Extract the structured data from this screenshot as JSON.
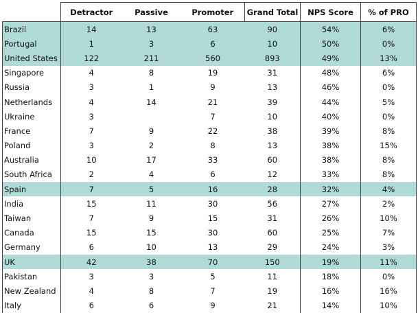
{
  "headers": [
    "Detractor",
    "Passive",
    "Promoter",
    "Grand Total",
    "NPS Score",
    "% of PRO"
  ],
  "colors": {
    "highlight": "#b0dad6"
  },
  "rows": [
    {
      "country": "Brazil",
      "detractor": "14",
      "passive": "13",
      "promoter": "63",
      "total": "90",
      "nps": "54%",
      "pro": "6%",
      "highlight": true
    },
    {
      "country": "Portugal",
      "detractor": "1",
      "passive": "3",
      "promoter": "6",
      "total": "10",
      "nps": "50%",
      "pro": "0%",
      "highlight": true
    },
    {
      "country": "United States",
      "detractor": "122",
      "passive": "211",
      "promoter": "560",
      "total": "893",
      "nps": "49%",
      "pro": "13%",
      "highlight": true
    },
    {
      "country": "Singapore",
      "detractor": "4",
      "passive": "8",
      "promoter": "19",
      "total": "31",
      "nps": "48%",
      "pro": "6%",
      "highlight": false
    },
    {
      "country": "Russia",
      "detractor": "3",
      "passive": "1",
      "promoter": "9",
      "total": "13",
      "nps": "46%",
      "pro": "0%",
      "highlight": false
    },
    {
      "country": "Netherlands",
      "detractor": "4",
      "passive": "14",
      "promoter": "21",
      "total": "39",
      "nps": "44%",
      "pro": "5%",
      "highlight": false
    },
    {
      "country": "Ukraine",
      "detractor": "3",
      "passive": "",
      "promoter": "7",
      "total": "10",
      "nps": "40%",
      "pro": "0%",
      "highlight": false
    },
    {
      "country": "France",
      "detractor": "7",
      "passive": "9",
      "promoter": "22",
      "total": "38",
      "nps": "39%",
      "pro": "8%",
      "highlight": false
    },
    {
      "country": "Poland",
      "detractor": "3",
      "passive": "2",
      "promoter": "8",
      "total": "13",
      "nps": "38%",
      "pro": "15%",
      "highlight": false
    },
    {
      "country": "Australia",
      "detractor": "10",
      "passive": "17",
      "promoter": "33",
      "total": "60",
      "nps": "38%",
      "pro": "8%",
      "highlight": false
    },
    {
      "country": "South Africa",
      "detractor": "2",
      "passive": "4",
      "promoter": "6",
      "total": "12",
      "nps": "33%",
      "pro": "8%",
      "highlight": false
    },
    {
      "country": "Spain",
      "detractor": "7",
      "passive": "5",
      "promoter": "16",
      "total": "28",
      "nps": "32%",
      "pro": "4%",
      "highlight": true
    },
    {
      "country": "India",
      "detractor": "15",
      "passive": "11",
      "promoter": "30",
      "total": "56",
      "nps": "27%",
      "pro": "2%",
      "highlight": false
    },
    {
      "country": "Taiwan",
      "detractor": "7",
      "passive": "9",
      "promoter": "15",
      "total": "31",
      "nps": "26%",
      "pro": "10%",
      "highlight": false
    },
    {
      "country": "Canada",
      "detractor": "15",
      "passive": "15",
      "promoter": "30",
      "total": "60",
      "nps": "25%",
      "pro": "7%",
      "highlight": false
    },
    {
      "country": "Germany",
      "detractor": "6",
      "passive": "10",
      "promoter": "13",
      "total": "29",
      "nps": "24%",
      "pro": "3%",
      "highlight": false
    },
    {
      "country": "UK",
      "detractor": "42",
      "passive": "38",
      "promoter": "70",
      "total": "150",
      "nps": "19%",
      "pro": "11%",
      "highlight": true
    },
    {
      "country": "Pakistan",
      "detractor": "3",
      "passive": "3",
      "promoter": "5",
      "total": "11",
      "nps": "18%",
      "pro": "0%",
      "highlight": false
    },
    {
      "country": "New Zealand",
      "detractor": "4",
      "passive": "8",
      "promoter": "7",
      "total": "19",
      "nps": "16%",
      "pro": "16%",
      "highlight": false
    },
    {
      "country": "Italy",
      "detractor": "6",
      "passive": "6",
      "promoter": "9",
      "total": "21",
      "nps": "14%",
      "pro": "10%",
      "highlight": false
    }
  ]
}
